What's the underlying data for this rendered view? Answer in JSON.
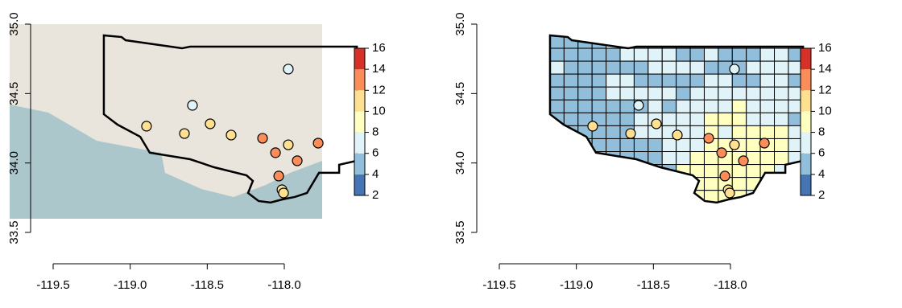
{
  "chart_data": [
    {
      "type": "point_map",
      "xlim": [
        -119.5,
        -118.0
      ],
      "xticks": [
        {
          "value": -119.5,
          "label": "-119.5"
        },
        {
          "value": -119,
          "label": "-119.0"
        },
        {
          "value": -118.5,
          "label": "-118.5"
        },
        {
          "value": -118,
          "label": "-118.0"
        }
      ],
      "ylim": [
        33.5,
        35.0
      ],
      "yticks": [
        {
          "value": 33.5,
          "label": "33.5"
        },
        {
          "value": 34,
          "label": "34.0"
        },
        {
          "value": 34.5,
          "label": "34.5"
        },
        {
          "value": 35,
          "label": "35.0"
        }
      ],
      "boundary": [
        [
          -119.171,
          34.919
        ],
        [
          -119.056,
          34.907
        ],
        [
          -119.03,
          34.884
        ],
        [
          -118.664,
          34.826
        ],
        [
          -118.611,
          34.838
        ],
        [
          -117.529,
          34.838
        ],
        [
          -117.529,
          34.016
        ],
        [
          -117.644,
          33.987
        ],
        [
          -117.644,
          33.929
        ],
        [
          -117.775,
          33.929
        ],
        [
          -117.853,
          33.784
        ],
        [
          -117.932,
          33.755
        ],
        [
          -118.01,
          33.738
        ],
        [
          -118.089,
          33.715
        ],
        [
          -118.167,
          33.726
        ],
        [
          -118.235,
          33.784
        ],
        [
          -118.204,
          33.871
        ],
        [
          -118.245,
          33.911
        ],
        [
          -118.455,
          33.969
        ],
        [
          -118.611,
          34.027
        ],
        [
          -118.873,
          34.074
        ],
        [
          -118.935,
          34.189
        ],
        [
          -119.082,
          34.276
        ],
        [
          -119.171,
          34.351
        ]
      ],
      "points": {
        "lon": [
          -118.894,
          -118.648,
          -118.596,
          -118.481,
          -118.345,
          -118.141,
          -118.057,
          -117.974,
          -117.974,
          -117.916,
          -117.78,
          -118.036,
          -118.015,
          -118.005
        ],
        "lat": [
          34.265,
          34.212,
          34.415,
          34.282,
          34.201,
          34.178,
          34.074,
          34.131,
          34.676,
          34.016,
          34.143,
          33.906,
          33.807,
          33.784
        ],
        "values": [
          11,
          11,
          7,
          11,
          11,
          13,
          13,
          11,
          7,
          13,
          13,
          13,
          11,
          11
        ]
      },
      "colorbar": {
        "breaks": [
          2,
          4,
          6,
          8,
          10,
          12,
          14,
          16
        ],
        "colors": [
          "#4575b4",
          "#91bfdb",
          "#e0f3f8",
          "#ffffbf",
          "#fee090",
          "#fc8d59",
          "#d73027"
        ]
      }
    },
    {
      "type": "grid_map",
      "xlim": [
        -119.5,
        -118.0
      ],
      "xticks": [
        {
          "value": -119.5,
          "label": "-119.5"
        },
        {
          "value": -119,
          "label": "-119.0"
        },
        {
          "value": -118.5,
          "label": "-118.5"
        },
        {
          "value": -118,
          "label": "-118.0"
        }
      ],
      "ylim": [
        33.5,
        35.0
      ],
      "yticks": [
        {
          "value": 33.5,
          "label": "33.5"
        },
        {
          "value": 34,
          "label": "34.0"
        },
        {
          "value": 34.5,
          "label": "34.5"
        },
        {
          "value": 35,
          "label": "35.0"
        }
      ],
      "boundary": [
        [
          -119.171,
          34.919
        ],
        [
          -119.056,
          34.907
        ],
        [
          -119.03,
          34.884
        ],
        [
          -118.664,
          34.826
        ],
        [
          -118.611,
          34.838
        ],
        [
          -117.529,
          34.838
        ],
        [
          -117.529,
          34.016
        ],
        [
          -117.644,
          33.987
        ],
        [
          -117.644,
          33.929
        ],
        [
          -117.775,
          33.929
        ],
        [
          -117.853,
          33.784
        ],
        [
          -117.932,
          33.755
        ],
        [
          -118.01,
          33.738
        ],
        [
          -118.089,
          33.715
        ],
        [
          -118.167,
          33.726
        ],
        [
          -118.235,
          33.784
        ],
        [
          -118.204,
          33.871
        ],
        [
          -118.245,
          33.911
        ],
        [
          -118.455,
          33.969
        ],
        [
          -118.611,
          34.027
        ],
        [
          -118.873,
          34.074
        ],
        [
          -118.935,
          34.189
        ],
        [
          -119.082,
          34.276
        ],
        [
          -119.171,
          34.351
        ]
      ],
      "grid": {
        "lon0": -119.171,
        "lat0": 34.919,
        "dlon": 0.091,
        "dlat": 0.093,
        "values": [
          [
            5,
            5,
            5,
            5,
            7,
            5,
            5,
            5,
            5,
            5,
            5,
            5,
            5,
            5,
            5,
            5,
            7,
            5
          ],
          [
            5,
            5,
            5,
            5,
            5,
            7,
            7,
            7,
            7,
            5,
            5,
            7,
            5,
            5,
            5,
            7,
            7,
            5
          ],
          [
            7,
            5,
            5,
            5,
            5,
            5,
            5,
            7,
            7,
            7,
            7,
            5,
            5,
            5,
            7,
            7,
            7,
            7
          ],
          [
            5,
            5,
            5,
            5,
            7,
            7,
            5,
            5,
            5,
            5,
            5,
            7,
            7,
            5,
            5,
            7,
            7,
            5
          ],
          [
            5,
            5,
            5,
            5,
            7,
            7,
            7,
            7,
            7,
            5,
            7,
            7,
            7,
            7,
            7,
            7,
            7,
            7
          ],
          [
            5,
            5,
            5,
            5,
            5,
            5,
            5,
            7,
            5,
            7,
            7,
            7,
            7,
            9,
            7,
            7,
            7,
            7
          ],
          [
            5,
            5,
            5,
            5,
            5,
            5,
            7,
            7,
            7,
            7,
            7,
            9,
            9,
            9,
            7,
            7,
            7,
            5
          ],
          [
            5,
            5,
            5,
            5,
            5,
            5,
            7,
            7,
            7,
            7,
            7,
            9,
            7,
            9,
            9,
            9,
            9,
            7
          ],
          [
            5,
            5,
            5,
            5,
            5,
            5,
            5,
            5,
            7,
            7,
            7,
            9,
            9,
            9,
            9,
            9,
            9,
            7
          ],
          [
            5,
            5,
            5,
            5,
            5,
            5,
            5,
            5,
            7,
            7,
            9,
            9,
            9,
            9,
            9,
            9,
            9,
            7
          ],
          [
            5,
            5,
            5,
            5,
            5,
            5,
            5,
            5,
            5,
            9,
            9,
            9,
            9,
            9,
            9,
            9,
            7,
            7
          ],
          [
            5,
            5,
            5,
            5,
            5,
            5,
            5,
            5,
            5,
            9,
            9,
            9,
            9,
            9,
            9,
            7,
            7,
            7
          ],
          [
            5,
            5,
            5,
            5,
            5,
            5,
            5,
            5,
            5,
            5,
            9,
            9,
            9,
            9,
            7,
            7,
            7,
            7
          ]
        ]
      },
      "points": {
        "lon": [
          -118.894,
          -118.648,
          -118.596,
          -118.481,
          -118.345,
          -118.141,
          -118.057,
          -117.974,
          -117.974,
          -117.916,
          -117.78,
          -118.036,
          -118.015,
          -118.005
        ],
        "lat": [
          34.265,
          34.212,
          34.415,
          34.282,
          34.201,
          34.178,
          34.074,
          34.131,
          34.676,
          34.016,
          34.143,
          33.906,
          33.807,
          33.784
        ],
        "values": [
          11,
          11,
          7,
          11,
          11,
          13,
          13,
          11,
          7,
          13,
          13,
          13,
          11,
          11
        ]
      },
      "colorbar": {
        "breaks": [
          2,
          4,
          6,
          8,
          10,
          12,
          14,
          16
        ],
        "colors": [
          "#4575b4",
          "#91bfdb",
          "#e0f3f8",
          "#ffffbf",
          "#fee090",
          "#fc8d59",
          "#d73027"
        ]
      }
    }
  ]
}
